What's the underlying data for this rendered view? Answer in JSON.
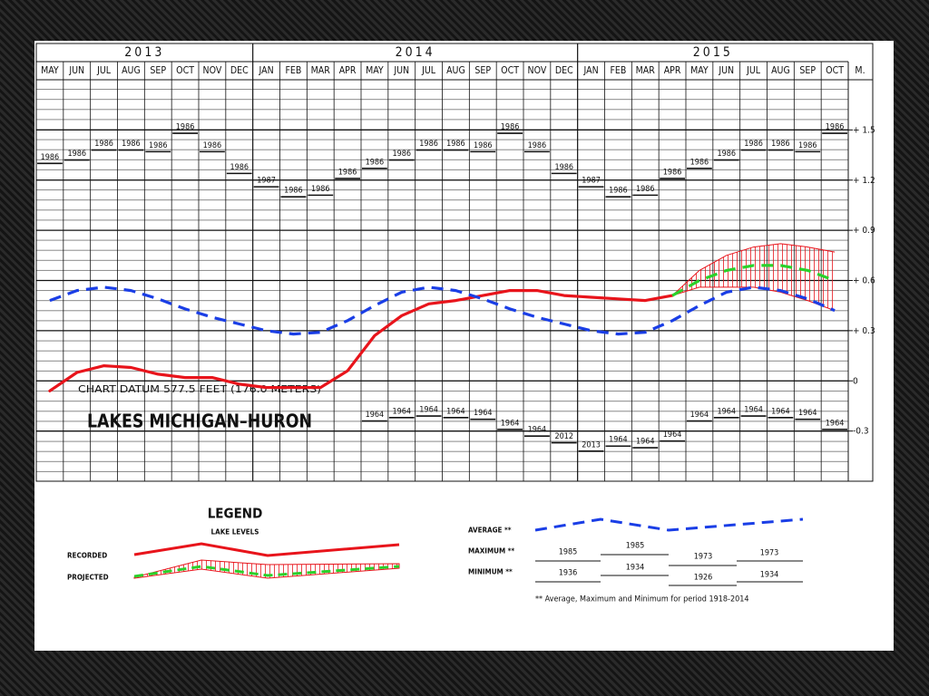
{
  "chart_data": {
    "type": "line",
    "title": "LAKES MICHIGAN–HURON",
    "annotation": "CHART DATUM  577.5 FEET (176.0 METERS)",
    "y_label": "M.",
    "years": [
      "2013",
      "2014",
      "2015"
    ],
    "categories": [
      "MAY",
      "JUN",
      "JUL",
      "AUG",
      "SEP",
      "OCT",
      "NOV",
      "DEC",
      "JAN",
      "FEB",
      "MAR",
      "APR",
      "MAY",
      "JUN",
      "JUL",
      "AUG",
      "SEP",
      "OCT",
      "NOV",
      "DEC",
      "JAN",
      "FEB",
      "MAR",
      "APR",
      "MAY",
      "JUN",
      "JUL",
      "AUG",
      "SEP",
      "OCT"
    ],
    "ylim": [
      -0.6,
      1.8
    ],
    "yticks": [
      {
        "value": 1.5,
        "label": "+ 1.5"
      },
      {
        "value": 1.2,
        "label": "+ 1.2"
      },
      {
        "value": 0.9,
        "label": "+ 0.9"
      },
      {
        "value": 0.6,
        "label": "+ 0.6"
      },
      {
        "value": 0.3,
        "label": "+ 0.3"
      },
      0,
      -0.3
    ],
    "grid": true,
    "series": [
      {
        "name": "RECORDED",
        "color": "#e8141b",
        "dashed": false,
        "values": [
          -0.06,
          0.05,
          0.09,
          0.08,
          0.04,
          0.02,
          0.02,
          -0.02,
          -0.04,
          -0.04,
          -0.04,
          0.06,
          0.27,
          0.39,
          0.46,
          0.48,
          0.51,
          0.54,
          0.54,
          0.51,
          0.5,
          0.49,
          0.48,
          0.51,
          null,
          null,
          null,
          null,
          null,
          null
        ]
      },
      {
        "name": "PROJECTED",
        "color": "#2ad12a",
        "dashed": true,
        "values": [
          null,
          null,
          null,
          null,
          null,
          null,
          null,
          null,
          null,
          null,
          null,
          null,
          null,
          null,
          null,
          null,
          null,
          null,
          null,
          null,
          null,
          null,
          null,
          0.51,
          0.6,
          0.66,
          0.69,
          0.69,
          0.66,
          0.6
        ]
      },
      {
        "name": "AVERAGE **",
        "color": "#1a3ee6",
        "dashed": true,
        "values": [
          0.48,
          0.54,
          0.56,
          0.54,
          0.49,
          0.43,
          0.38,
          0.34,
          0.3,
          0.28,
          0.29,
          0.36,
          0.45,
          0.53,
          0.56,
          0.54,
          0.49,
          0.43,
          0.38,
          0.34,
          0.3,
          0.28,
          0.29,
          0.36,
          0.45,
          0.53,
          0.56,
          0.54,
          0.49,
          0.42
        ]
      }
    ],
    "band": {
      "color": "#e8141b",
      "high": [
        null,
        null,
        null,
        null,
        null,
        null,
        null,
        null,
        null,
        null,
        null,
        null,
        null,
        null,
        null,
        null,
        null,
        null,
        null,
        null,
        null,
        null,
        null,
        0.51,
        0.66,
        0.75,
        0.8,
        0.82,
        0.8,
        0.77
      ],
      "low": [
        null,
        null,
        null,
        null,
        null,
        null,
        null,
        null,
        null,
        null,
        null,
        null,
        null,
        null,
        null,
        null,
        null,
        null,
        null,
        null,
        null,
        null,
        null,
        0.51,
        0.56,
        0.56,
        0.56,
        0.53,
        0.48,
        0.42
      ]
    },
    "maximum": {
      "name": "MAXIMUM **",
      "values": [
        1.3,
        1.32,
        1.38,
        1.38,
        1.37,
        1.48,
        1.37,
        1.24,
        1.16,
        1.1,
        1.11,
        1.21,
        1.27,
        1.32,
        1.38,
        1.38,
        1.37,
        1.48,
        1.37,
        1.24,
        1.16,
        1.1,
        1.11,
        1.21,
        1.27,
        1.32,
        1.38,
        1.38,
        1.37,
        1.48
      ],
      "record_years": [
        "1986",
        "1986",
        "1986",
        "1986",
        "1986",
        "1986",
        "1986",
        "1986",
        "1987",
        "1986",
        "1986",
        "1986",
        "1986",
        "1986",
        "1986",
        "1986",
        "1986",
        "1986",
        "1986",
        "1986",
        "1987",
        "1986",
        "1986",
        "1986",
        "1986",
        "1986",
        "1986",
        "1986",
        "1986",
        "1986"
      ],
      "sample_years": [
        "1985",
        "1985",
        "1973",
        "1973"
      ]
    },
    "minimum": {
      "name": "MINIMUM **",
      "values": [
        null,
        null,
        null,
        null,
        null,
        null,
        null,
        null,
        null,
        null,
        null,
        null,
        -0.24,
        -0.22,
        -0.21,
        -0.22,
        -0.23,
        -0.29,
        -0.33,
        -0.37,
        -0.42,
        -0.39,
        -0.4,
        -0.36,
        -0.24,
        -0.22,
        -0.21,
        -0.22,
        -0.23,
        -0.29
      ],
      "record_years": [
        null,
        null,
        null,
        null,
        null,
        null,
        null,
        null,
        null,
        null,
        null,
        null,
        "1964",
        "1964",
        "1964",
        "1964",
        "1964",
        "1964",
        "1964",
        "2012",
        "2013",
        "1964",
        "1964",
        "1964",
        "1964",
        "1964",
        "1964",
        "1964",
        "1964",
        "1964"
      ],
      "sample_years": [
        "1936",
        "1934",
        "1926",
        "1934"
      ]
    },
    "legend": {
      "title": "LEGEND",
      "subtitle": "LAKE LEVELS",
      "note": "** Average, Maximum and Minimum for period 1918-2014"
    }
  }
}
